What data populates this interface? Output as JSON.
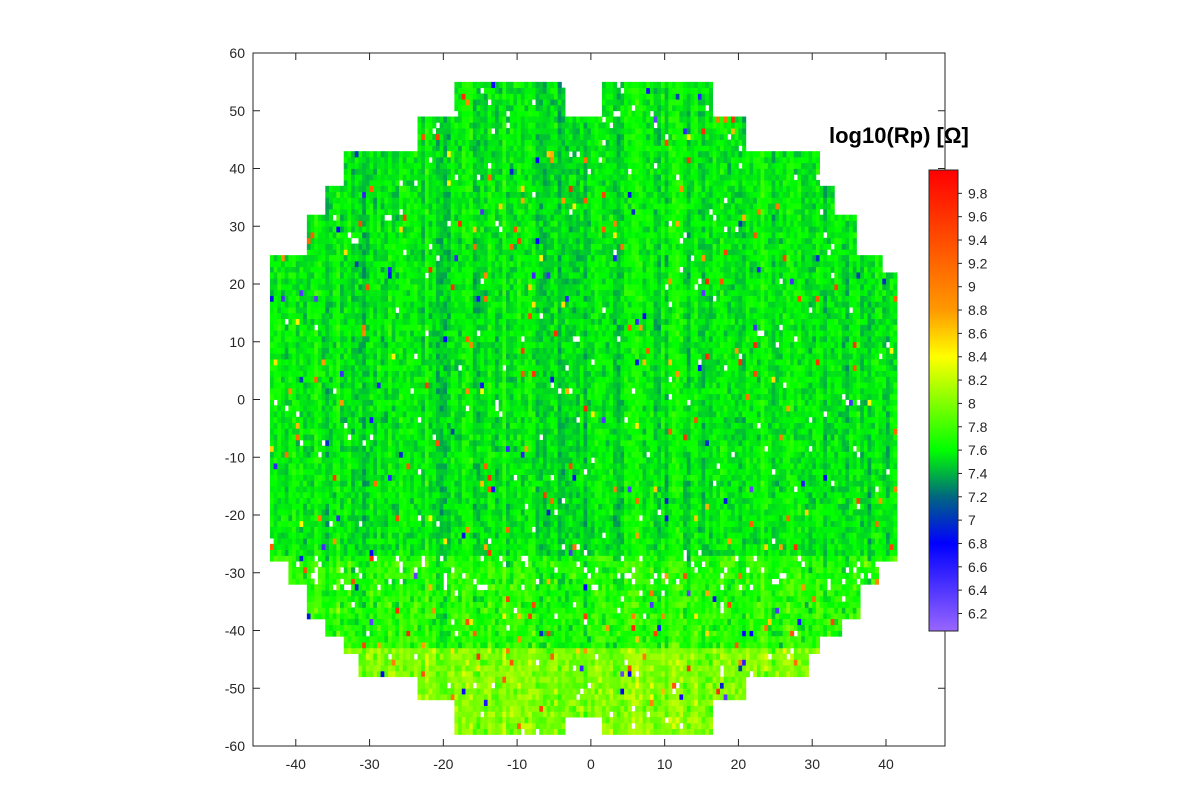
{
  "chart_data": {
    "type": "heatmap",
    "title": "",
    "colorbar_title": "log10(Rp) [Ω]",
    "xlabel": "",
    "ylabel": "",
    "xlim": [
      -45.8,
      48
    ],
    "ylim": [
      -60,
      60
    ],
    "x_ticks": [
      "-40",
      "-30",
      "-20",
      "-10",
      "0",
      "10",
      "20",
      "30",
      "40"
    ],
    "y_ticks": [
      "60",
      "50",
      "40",
      "30",
      "20",
      "10",
      "0",
      "-10",
      "-20",
      "-30",
      "-40",
      "-50",
      "-60"
    ],
    "clim": [
      6.05,
      10
    ],
    "colorbar_ticks": [
      "9.8",
      "9.6",
      "9.4",
      "9.2",
      "9",
      "8.8",
      "8.6",
      "8.4",
      "8.2",
      "8",
      "7.8",
      "7.6",
      "7.4",
      "7.2",
      "7",
      "6.8",
      "6.6",
      "6.4",
      "6.2"
    ],
    "colormap": [
      {
        "v": 6.05,
        "color": "#9966ff"
      },
      {
        "v": 6.8,
        "color": "#0000ff"
      },
      {
        "v": 7.2,
        "color": "#006680"
      },
      {
        "v": 7.6,
        "color": "#00ff00"
      },
      {
        "v": 8.4,
        "color": "#ffff00"
      },
      {
        "v": 8.8,
        "color": "#ff9900"
      },
      {
        "v": 10.0,
        "color": "#ff0000"
      }
    ],
    "cell_size": {
      "dx": 0.5,
      "dy": 1
    },
    "wafer_rows": [
      {
        "y": [
          49,
          55
        ],
        "x": [
          [
            -18.5,
            -3.5
          ],
          [
            1.5,
            16.5
          ]
        ]
      },
      {
        "y": [
          43,
          49
        ],
        "x": [
          [
            -23.5,
            21
          ]
        ]
      },
      {
        "y": [
          37,
          43
        ],
        "x": [
          [
            -33.5,
            31
          ]
        ]
      },
      {
        "y": [
          32,
          37
        ],
        "x": [
          [
            -36,
            33
          ]
        ]
      },
      {
        "y": [
          25,
          32
        ],
        "x": [
          [
            -38.5,
            36
          ]
        ]
      },
      {
        "y": [
          22,
          25
        ],
        "x": [
          [
            -43.5,
            39.5
          ]
        ]
      },
      {
        "y": [
          -28,
          22
        ],
        "x": [
          [
            -43.5,
            41.5
          ]
        ]
      },
      {
        "y": [
          -32,
          -28
        ],
        "x": [
          [
            -41,
            39
          ]
        ]
      },
      {
        "y": [
          -38,
          -32
        ],
        "x": [
          [
            -38.5,
            36.5
          ]
        ]
      },
      {
        "y": [
          -41,
          -38
        ],
        "x": [
          [
            -36,
            34
          ]
        ]
      },
      {
        "y": [
          -44,
          -41
        ],
        "x": [
          [
            -33.5,
            31
          ]
        ]
      },
      {
        "y": [
          -48,
          -44
        ],
        "x": [
          [
            -31.5,
            29.5
          ]
        ]
      },
      {
        "y": [
          -52,
          -48
        ],
        "x": [
          [
            -23.5,
            21
          ]
        ]
      },
      {
        "y": [
          -55,
          -52
        ],
        "x": [
          [
            -18.5,
            16.5
          ]
        ]
      },
      {
        "y": [
          -58,
          -55
        ],
        "x": [
          [
            -18.5,
            -3.5
          ],
          [
            1.5,
            16.5
          ]
        ]
      }
    ],
    "region_means": [
      {
        "y": [
          -27,
          55
        ],
        "mean": 7.55
      },
      {
        "y": [
          -43,
          -27
        ],
        "mean": 7.7
      },
      {
        "y": [
          -58,
          -43
        ],
        "mean": 8.0
      }
    ],
    "missing_fraction": 0.012,
    "seed": 7
  }
}
